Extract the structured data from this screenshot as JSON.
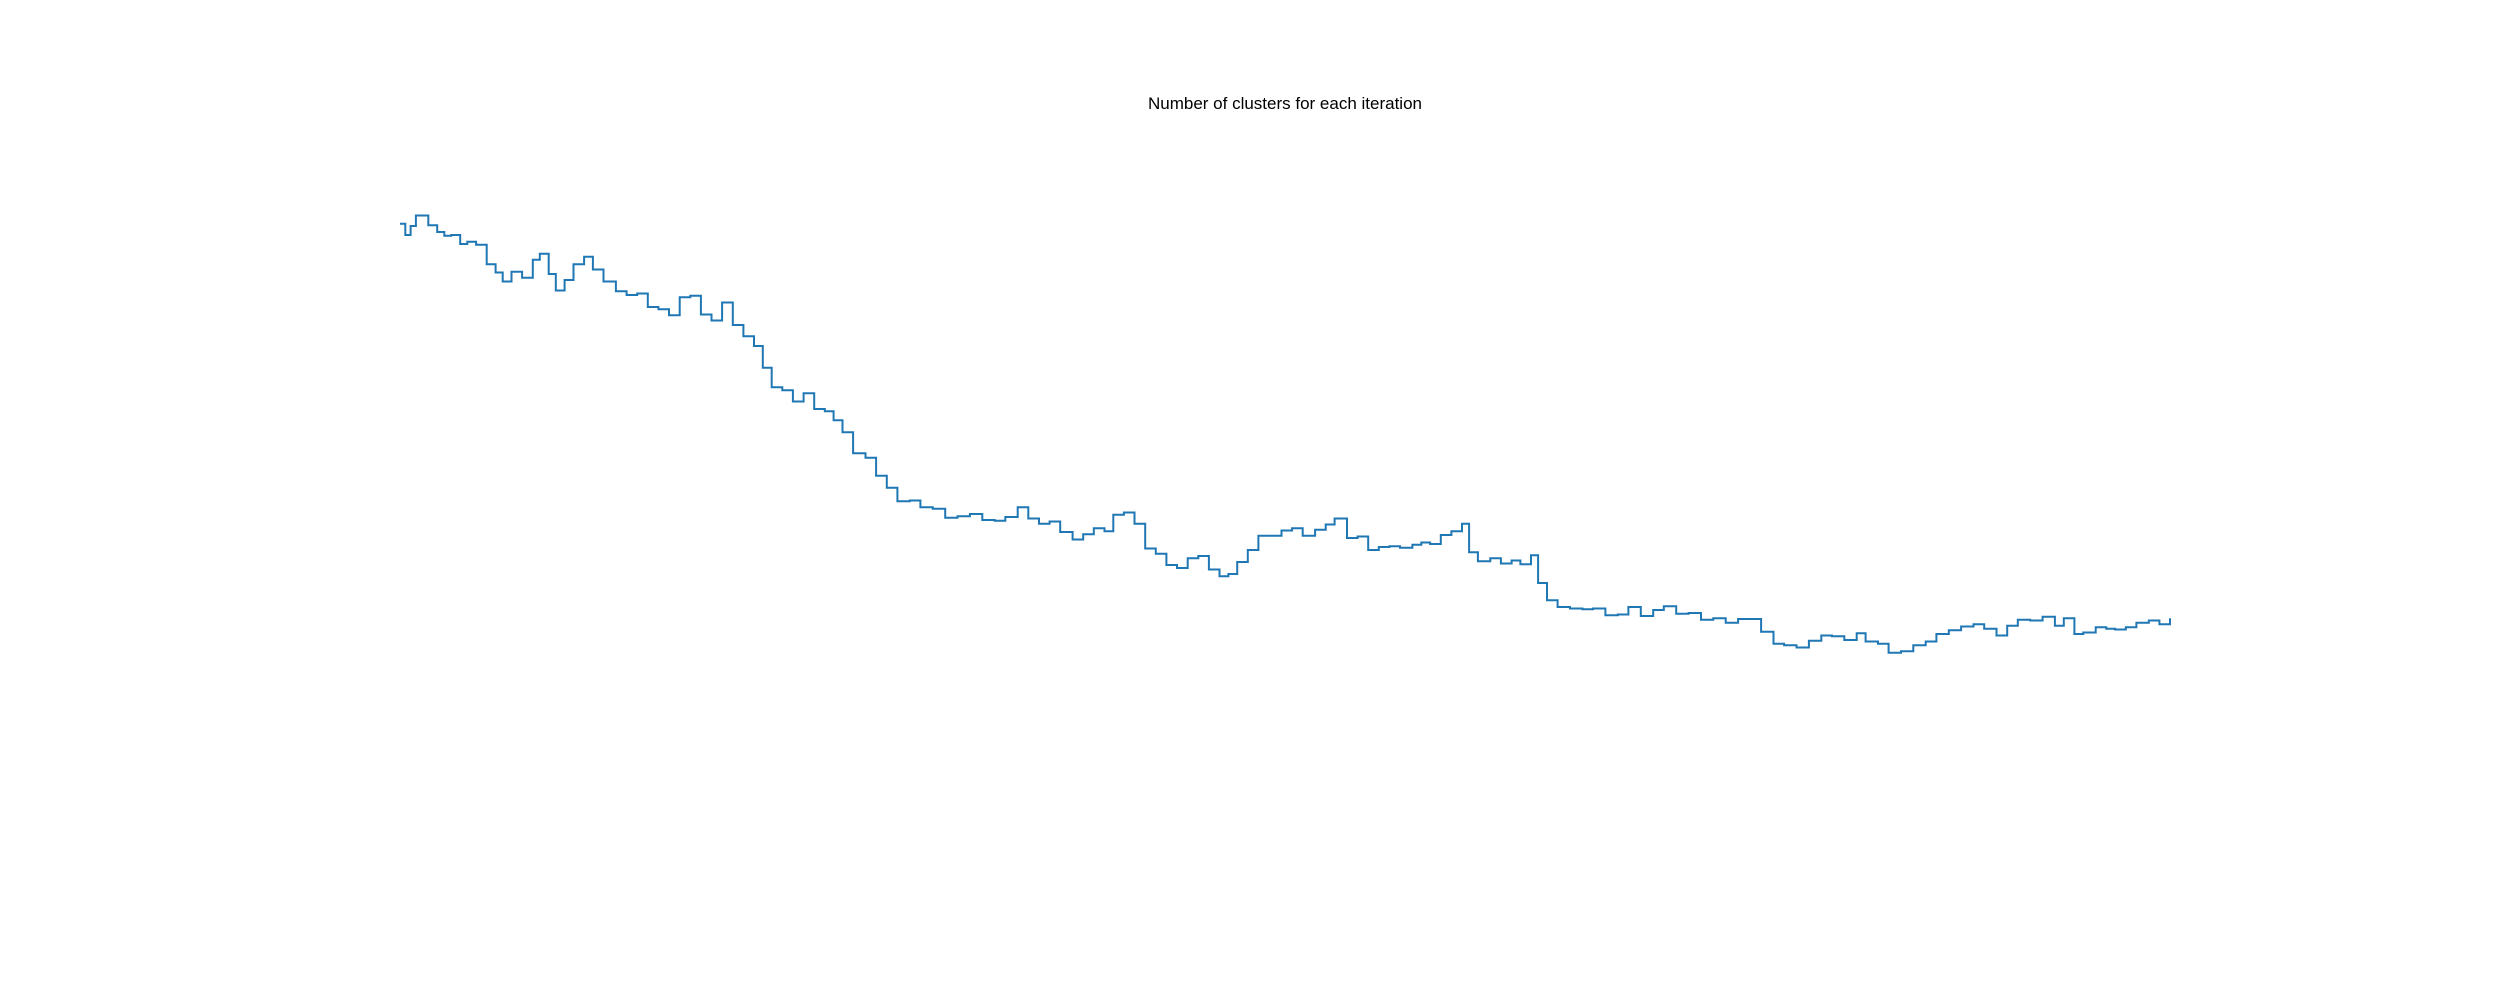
{
  "chart_data": {
    "type": "line",
    "title": "Number of clusters for each iteration",
    "xlabel": "",
    "ylabel": "",
    "axes_visible": false,
    "grid": false,
    "legend": "none",
    "line_color": "#1f77b4",
    "x_range": [
      0,
      100
    ],
    "y_range": [
      0,
      100
    ],
    "series": [
      {
        "name": "",
        "points": [
          [
            0.0,
            87.5
          ],
          [
            0.3,
            86.0
          ],
          [
            0.6,
            87.2
          ],
          [
            0.9,
            88.6
          ],
          [
            1.3,
            88.6
          ],
          [
            1.6,
            87.3
          ],
          [
            2.1,
            86.4
          ],
          [
            2.5,
            85.9
          ],
          [
            2.9,
            86.0
          ],
          [
            3.4,
            84.8
          ],
          [
            3.8,
            85.1
          ],
          [
            4.3,
            84.7
          ],
          [
            4.9,
            82.1
          ],
          [
            5.4,
            81.0
          ],
          [
            5.8,
            79.8
          ],
          [
            6.3,
            81.1
          ],
          [
            6.9,
            80.3
          ],
          [
            7.5,
            82.7
          ],
          [
            7.9,
            83.5
          ],
          [
            8.4,
            80.8
          ],
          [
            8.8,
            78.6
          ],
          [
            9.3,
            80.0
          ],
          [
            9.8,
            82.1
          ],
          [
            10.4,
            83.1
          ],
          [
            10.9,
            81.4
          ],
          [
            11.5,
            79.8
          ],
          [
            12.2,
            78.5
          ],
          [
            12.8,
            78.0
          ],
          [
            13.4,
            78.2
          ],
          [
            14.0,
            76.4
          ],
          [
            14.6,
            76.1
          ],
          [
            15.2,
            75.3
          ],
          [
            15.8,
            77.7
          ],
          [
            16.4,
            77.9
          ],
          [
            17.0,
            75.4
          ],
          [
            17.6,
            74.6
          ],
          [
            18.2,
            77.0
          ],
          [
            18.8,
            74.0
          ],
          [
            19.4,
            72.5
          ],
          [
            20.0,
            71.2
          ],
          [
            20.5,
            68.3
          ],
          [
            21.0,
            65.7
          ],
          [
            21.6,
            65.3
          ],
          [
            22.2,
            63.8
          ],
          [
            22.8,
            64.9
          ],
          [
            23.4,
            62.8
          ],
          [
            24.0,
            62.5
          ],
          [
            24.5,
            61.3
          ],
          [
            25.0,
            59.7
          ],
          [
            25.6,
            56.9
          ],
          [
            26.3,
            56.3
          ],
          [
            26.9,
            53.9
          ],
          [
            27.5,
            52.3
          ],
          [
            28.1,
            50.5
          ],
          [
            28.8,
            50.6
          ],
          [
            29.4,
            49.7
          ],
          [
            30.1,
            49.5
          ],
          [
            30.8,
            48.3
          ],
          [
            31.5,
            48.5
          ],
          [
            32.2,
            48.8
          ],
          [
            32.9,
            48.0
          ],
          [
            33.6,
            47.9
          ],
          [
            34.2,
            48.4
          ],
          [
            34.9,
            49.7
          ],
          [
            35.5,
            48.2
          ],
          [
            36.1,
            47.5
          ],
          [
            36.7,
            47.8
          ],
          [
            37.3,
            46.4
          ],
          [
            38.0,
            45.4
          ],
          [
            38.6,
            46.1
          ],
          [
            39.2,
            46.9
          ],
          [
            39.8,
            46.5
          ],
          [
            40.3,
            48.7
          ],
          [
            40.9,
            49.0
          ],
          [
            41.5,
            47.5
          ],
          [
            42.1,
            44.2
          ],
          [
            42.7,
            43.5
          ],
          [
            43.3,
            42.0
          ],
          [
            43.9,
            41.6
          ],
          [
            44.5,
            42.9
          ],
          [
            45.1,
            43.2
          ],
          [
            45.7,
            41.4
          ],
          [
            46.3,
            40.5
          ],
          [
            46.8,
            40.8
          ],
          [
            47.3,
            42.4
          ],
          [
            47.9,
            44.0
          ],
          [
            48.5,
            45.9
          ],
          [
            49.1,
            45.9
          ],
          [
            49.8,
            46.6
          ],
          [
            50.4,
            46.9
          ],
          [
            51.0,
            45.9
          ],
          [
            51.7,
            46.7
          ],
          [
            52.3,
            47.4
          ],
          [
            52.8,
            48.2
          ],
          [
            53.5,
            45.6
          ],
          [
            54.1,
            45.8
          ],
          [
            54.7,
            44.0
          ],
          [
            55.3,
            44.4
          ],
          [
            55.9,
            44.5
          ],
          [
            56.5,
            44.3
          ],
          [
            57.2,
            44.7
          ],
          [
            57.7,
            45.0
          ],
          [
            58.2,
            44.8
          ],
          [
            58.8,
            46.0
          ],
          [
            59.4,
            46.5
          ],
          [
            60.0,
            47.5
          ],
          [
            60.4,
            43.7
          ],
          [
            60.9,
            42.5
          ],
          [
            61.6,
            42.9
          ],
          [
            62.2,
            42.2
          ],
          [
            62.8,
            42.6
          ],
          [
            63.3,
            42.1
          ],
          [
            63.9,
            43.3
          ],
          [
            64.3,
            39.6
          ],
          [
            64.8,
            37.3
          ],
          [
            65.4,
            36.4
          ],
          [
            66.1,
            36.2
          ],
          [
            66.8,
            36.1
          ],
          [
            67.4,
            36.2
          ],
          [
            68.1,
            35.3
          ],
          [
            68.8,
            35.4
          ],
          [
            69.4,
            36.4
          ],
          [
            70.1,
            35.2
          ],
          [
            70.8,
            36.0
          ],
          [
            71.4,
            36.5
          ],
          [
            72.1,
            35.5
          ],
          [
            72.8,
            35.6
          ],
          [
            73.5,
            34.7
          ],
          [
            74.2,
            34.9
          ],
          [
            74.9,
            34.3
          ],
          [
            75.6,
            34.8
          ],
          [
            76.3,
            34.8
          ],
          [
            76.9,
            33.1
          ],
          [
            77.6,
            31.5
          ],
          [
            78.2,
            31.3
          ],
          [
            78.9,
            31.0
          ],
          [
            79.6,
            31.9
          ],
          [
            80.3,
            32.6
          ],
          [
            80.9,
            32.5
          ],
          [
            81.6,
            32.0
          ],
          [
            82.3,
            32.9
          ],
          [
            82.8,
            31.8
          ],
          [
            83.5,
            31.5
          ],
          [
            84.1,
            30.3
          ],
          [
            84.8,
            30.5
          ],
          [
            85.5,
            31.3
          ],
          [
            86.2,
            31.8
          ],
          [
            86.8,
            32.8
          ],
          [
            87.5,
            33.3
          ],
          [
            88.2,
            33.8
          ],
          [
            88.9,
            34.1
          ],
          [
            89.5,
            33.5
          ],
          [
            90.2,
            32.6
          ],
          [
            90.8,
            33.9
          ],
          [
            91.4,
            34.7
          ],
          [
            92.1,
            34.6
          ],
          [
            92.8,
            35.1
          ],
          [
            93.5,
            33.9
          ],
          [
            94.0,
            34.9
          ],
          [
            94.6,
            32.8
          ],
          [
            95.1,
            33.0
          ],
          [
            95.8,
            33.7
          ],
          [
            96.4,
            33.5
          ],
          [
            96.9,
            33.4
          ],
          [
            97.5,
            33.7
          ],
          [
            98.1,
            34.3
          ],
          [
            98.8,
            34.6
          ],
          [
            99.4,
            34.1
          ],
          [
            100.0,
            34.9
          ]
        ]
      }
    ]
  }
}
